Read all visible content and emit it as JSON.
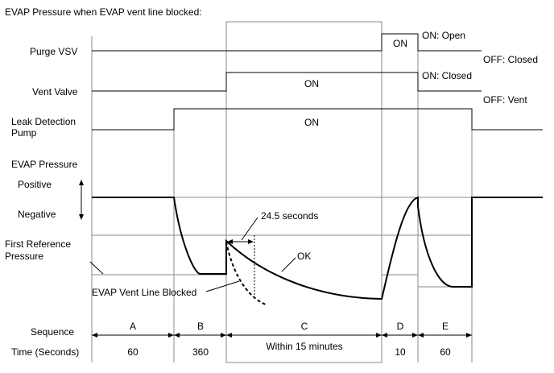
{
  "title": "EVAP Pressure when EVAP vent line blocked:",
  "signals": {
    "purge_vsv": {
      "label": "Purge VSV",
      "pulse_label": "ON",
      "on_state": "ON: Open",
      "off_state": "OFF: Closed"
    },
    "vent_valve": {
      "label": "Vent Valve",
      "pulse_label": "ON",
      "on_state": "ON: Closed",
      "off_state": "OFF: Vent"
    },
    "leak_pump": {
      "label_line1": "Leak Detection",
      "label_line2": "Pump",
      "pulse_label": "ON"
    }
  },
  "pressure": {
    "label": "EVAP Pressure",
    "positive": "Positive",
    "negative": "Negative",
    "reference_line1": "First Reference",
    "reference_line2": "Pressure",
    "time_note": "24.5 seconds",
    "ok_label": "OK",
    "blocked_label": "EVAP Vent Line Blocked"
  },
  "sequence": {
    "label": "Sequence",
    "time_label": "Time (Seconds)",
    "steps": [
      {
        "id": "A",
        "time": "60"
      },
      {
        "id": "B",
        "time": "360"
      },
      {
        "id": "C",
        "time": "Within 15 minutes"
      },
      {
        "id": "D",
        "time": "10"
      },
      {
        "id": "E",
        "time": "60"
      }
    ]
  },
  "colors": {
    "line": "#000000",
    "guide": "#8a8a8a",
    "background": "#ffffff"
  }
}
